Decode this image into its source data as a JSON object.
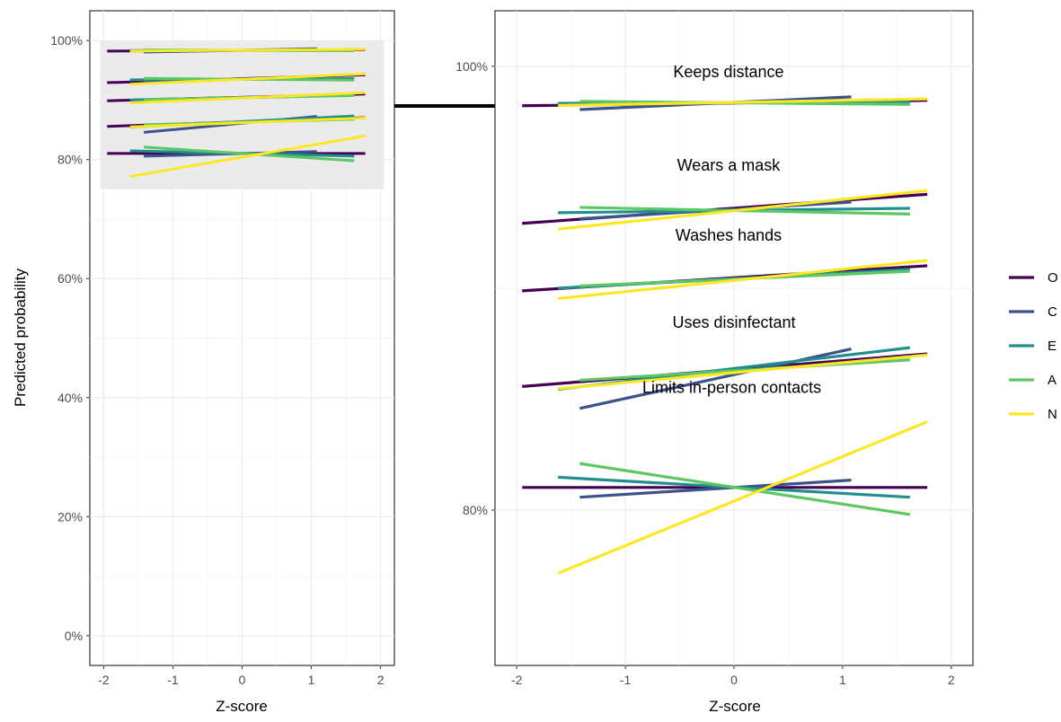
{
  "figure": {
    "ylabel": "Predicted probability",
    "xlabel": "Z-score"
  },
  "colors": {
    "O": "#440154",
    "C": "#3b528b",
    "E": "#21908c",
    "A": "#5dc863",
    "N": "#fde725"
  },
  "legend": [
    "O",
    "C",
    "E",
    "A",
    "N"
  ],
  "chart_data": [
    {
      "type": "line",
      "panel": "overview",
      "xlabel": "Z-score",
      "ylabel": "Predicted probability",
      "xlim": [
        -2.2,
        2.2
      ],
      "ylim": [
        -0.05,
        1.05
      ],
      "x_ticks": [
        -2,
        -1,
        0,
        1,
        2
      ],
      "y_ticks": [
        0,
        0.2,
        0.4,
        0.6,
        0.8,
        1.0
      ],
      "y_tick_labels": [
        "0%",
        "20%",
        "40%",
        "60%",
        "80%",
        "100%"
      ],
      "grid": true,
      "zoom_region": {
        "x": [
          -2.05,
          2.05
        ],
        "y": [
          0.75,
          1.0
        ]
      }
    },
    {
      "type": "line",
      "panel": "zoom",
      "xlabel": "Z-score",
      "xlim": [
        -2.2,
        2.2
      ],
      "ylim": [
        0.73,
        1.025
      ],
      "x_ticks": [
        -2,
        -1,
        0,
        1,
        2
      ],
      "y_ticks": [
        0.8,
        1.0
      ],
      "y_tick_labels": [
        "80%",
        "100%"
      ],
      "grid": true,
      "legend_position": "right",
      "behaviours": [
        {
          "label": "Keeps distance",
          "series": [
            {
              "name": "O",
              "x": [
                -1.95,
                1.78
              ],
              "y": [
                0.9822,
                0.9846
              ]
            },
            {
              "name": "C",
              "x": [
                -1.42,
                1.08
              ],
              "y": [
                0.9805,
                0.9862
              ]
            },
            {
              "name": "E",
              "x": [
                -1.62,
                1.62
              ],
              "y": [
                0.9833,
                0.9838
              ]
            },
            {
              "name": "A",
              "x": [
                -1.42,
                1.62
              ],
              "y": [
                0.9842,
                0.9828
              ]
            },
            {
              "name": "N",
              "x": [
                -1.62,
                1.78
              ],
              "y": [
                0.9823,
                0.9853
              ]
            }
          ]
        },
        {
          "label": "Wears a mask",
          "series": [
            {
              "name": "O",
              "x": [
                -1.95,
                1.78
              ],
              "y": [
                0.9292,
                0.9423
              ]
            },
            {
              "name": "C",
              "x": [
                -1.42,
                1.08
              ],
              "y": [
                0.9313,
                0.9388
              ]
            },
            {
              "name": "E",
              "x": [
                -1.62,
                1.62
              ],
              "y": [
                0.934,
                0.936
              ]
            },
            {
              "name": "A",
              "x": [
                -1.42,
                1.62
              ],
              "y": [
                0.9364,
                0.9334
              ]
            },
            {
              "name": "N",
              "x": [
                -1.62,
                1.78
              ],
              "y": [
                0.9266,
                0.944
              ]
            }
          ]
        },
        {
          "label": "Washes hands",
          "series": [
            {
              "name": "O",
              "x": [
                -1.95,
                1.78
              ],
              "y": [
                0.8988,
                0.9101
              ]
            },
            {
              "name": "C",
              "x": [
                -1.42,
                1.08
              ],
              "y": [
                0.9008,
                0.9066
              ]
            },
            {
              "name": "E",
              "x": [
                -1.62,
                1.62
              ],
              "y": [
                0.9,
                0.9085
              ]
            },
            {
              "name": "A",
              "x": [
                -1.42,
                1.62
              ],
              "y": [
                0.901,
                0.9076
              ]
            },
            {
              "name": "N",
              "x": [
                -1.62,
                1.78
              ],
              "y": [
                0.8953,
                0.9125
              ]
            }
          ]
        },
        {
          "label": "Uses disinfectant",
          "series": [
            {
              "name": "O",
              "x": [
                -1.95,
                1.78
              ],
              "y": [
                0.8557,
                0.8704
              ]
            },
            {
              "name": "C",
              "x": [
                -1.42,
                1.08
              ],
              "y": [
                0.8458,
                0.8726
              ]
            },
            {
              "name": "E",
              "x": [
                -1.62,
                1.62
              ],
              "y": [
                0.8544,
                0.8732
              ]
            },
            {
              "name": "A",
              "x": [
                -1.42,
                1.62
              ],
              "y": [
                0.8585,
                0.8677
              ]
            },
            {
              "name": "N",
              "x": [
                -1.62,
                1.78
              ],
              "y": [
                0.8547,
                0.8699
              ]
            }
          ]
        },
        {
          "label": "Limits in-person contacts",
          "series": [
            {
              "name": "O",
              "x": [
                -1.95,
                1.78
              ],
              "y": [
                0.8102,
                0.8102
              ]
            },
            {
              "name": "C",
              "x": [
                -1.42,
                1.08
              ],
              "y": [
                0.8058,
                0.8135
              ]
            },
            {
              "name": "E",
              "x": [
                -1.62,
                1.62
              ],
              "y": [
                0.8148,
                0.8058
              ]
            },
            {
              "name": "A",
              "x": [
                -1.42,
                1.62
              ],
              "y": [
                0.821,
                0.798
              ]
            },
            {
              "name": "N",
              "x": [
                -1.62,
                1.78
              ],
              "y": [
                0.7715,
                0.8398
              ]
            }
          ]
        }
      ]
    }
  ]
}
